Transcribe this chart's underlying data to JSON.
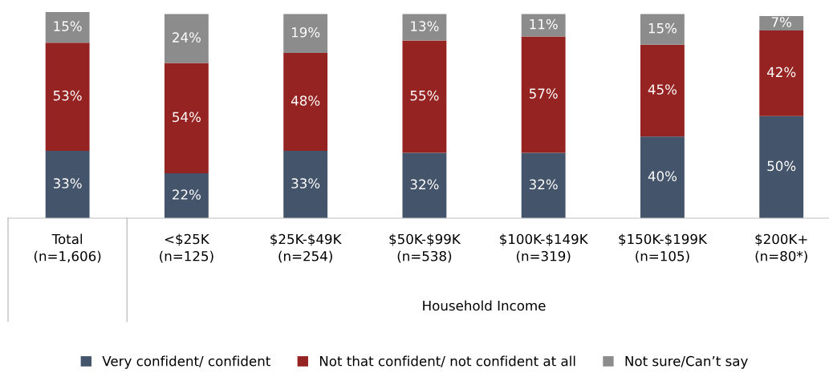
{
  "chart_data": {
    "type": "bar",
    "stacked": true,
    "legend": "bottom",
    "grid": false,
    "categories": [
      "Total\n(n=1,606)",
      "<$25K\n(n=125)",
      "$25K-$49K\n(n=254)",
      "$50K-$99K\n(n=538)",
      "$100K-$149K\n(n=319)",
      "$150K-$199K\n(n=105)",
      "$200K+\n(n=80*)"
    ],
    "series": [
      {
        "name": "Very confident/ confident",
        "color": "#44546a",
        "values": [
          33,
          22,
          33,
          32,
          32,
          40,
          50
        ],
        "value_labels": [
          "33%",
          "22%",
          "33%",
          "32%",
          "32%",
          "40%",
          "50%"
        ]
      },
      {
        "name": "Not that confident/ not confident at all",
        "color": "#952321",
        "values": [
          53,
          54,
          48,
          55,
          57,
          45,
          42
        ],
        "value_labels": [
          "53%",
          "54%",
          "48%",
          "55%",
          "57%",
          "45%",
          "42%"
        ]
      },
      {
        "name": "Not sure/Can’t say",
        "color": "#8c8c8c",
        "values": [
          15,
          24,
          19,
          13,
          11,
          15,
          7
        ],
        "value_labels": [
          "15%",
          "24%",
          "19%",
          "13%",
          "11%",
          "15%",
          "7%"
        ]
      }
    ],
    "annotations": [
      "Household Income"
    ]
  }
}
